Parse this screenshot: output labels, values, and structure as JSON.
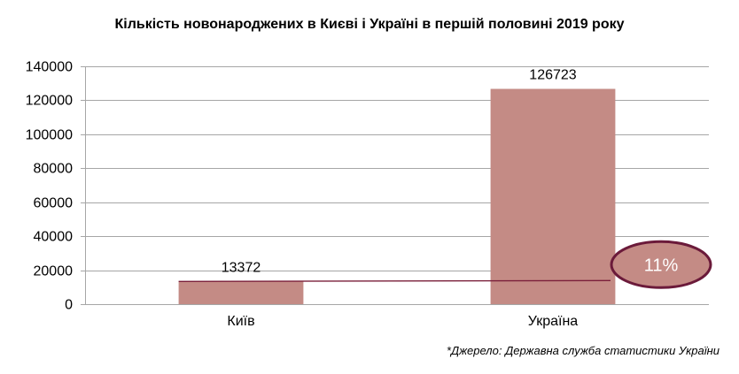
{
  "chart_data": {
    "type": "bar",
    "title": "Кількість новонароджених в Києві і Україні в першій половині 2019 року",
    "categories": [
      "Київ",
      "Україна"
    ],
    "values": [
      13372,
      126723
    ],
    "value_labels": [
      "13372",
      "126723"
    ],
    "ylim": [
      0,
      140000
    ],
    "yticks": [
      0,
      20000,
      40000,
      60000,
      80000,
      100000,
      120000,
      140000
    ],
    "xlabel": "",
    "ylabel": "",
    "grid": true,
    "legend": "none",
    "annotation": {
      "text": "11%"
    }
  },
  "source_note": "*Джерело: Державна служба статистики України",
  "colors": {
    "bar": "#c48b85",
    "grid": "#a6a6a6",
    "line": "#7a1f3a",
    "ellipse_fill": "#c48b85",
    "ellipse_stroke": "#6b1a3a",
    "annotation_text": "#ffffff"
  }
}
